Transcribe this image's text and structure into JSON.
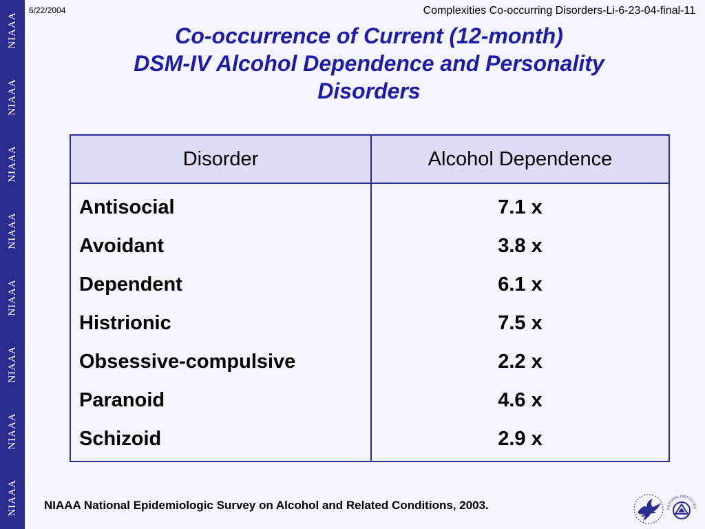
{
  "slide": {
    "date": "6/22/2004",
    "filename": "Complexities Co-occurring Disorders-Li-6-23-04-final-11",
    "title_lines": [
      "Co-occurrence of Current (12-month)",
      "DSM-IV Alcohol Dependence and Personality",
      "Disorders"
    ],
    "sidebar_word": "NIAAA",
    "source": "NIAAA National Epidemiologic Survey on Alcohol and Related Conditions, 2003."
  },
  "table": {
    "headers": [
      "Disorder",
      "Alcohol Dependence"
    ],
    "rows": [
      {
        "disorder": "Antisocial",
        "value": "7.1 x"
      },
      {
        "disorder": "Avoidant",
        "value": "3.8 x"
      },
      {
        "disorder": "Dependent",
        "value": "6.1 x"
      },
      {
        "disorder": "Histrionic",
        "value": "7.5 x"
      },
      {
        "disorder": "Obsessive-compulsive",
        "value": "2.2 x"
      },
      {
        "disorder": "Paranoid",
        "value": "4.6 x"
      },
      {
        "disorder": "Schizoid",
        "value": "2.9 x"
      }
    ]
  },
  "logos": {
    "hhs": "hhs-eagle-icon",
    "nih": "nih-seal-icon",
    "nih_text": "NATIONAL INSTITUTES OF HEALTH"
  },
  "colors": {
    "sidebar": "#2b2d8e",
    "title": "#1c1ca8",
    "background": "#f4f4fc",
    "header_fill": "#dcdcf5"
  }
}
